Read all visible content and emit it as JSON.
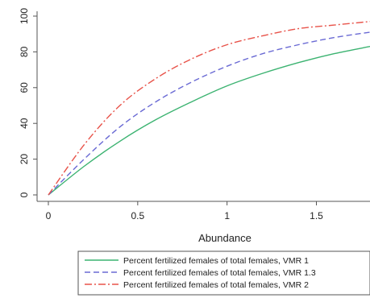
{
  "chart_data": {
    "type": "line",
    "xlabel": "Abundance",
    "ylabel": "",
    "xlim": [
      0,
      1.8
    ],
    "ylim": [
      0,
      100
    ],
    "x_ticks": [
      0,
      0.5,
      1,
      1.5
    ],
    "x_tick_labels": [
      "0",
      "0.5",
      "1",
      "1.5"
    ],
    "y_ticks": [
      0,
      20,
      40,
      60,
      80,
      100
    ],
    "y_tick_labels": [
      "0",
      "20",
      "40",
      "60",
      "80",
      "100"
    ],
    "grid": false,
    "legend_position": "bottom",
    "x": [
      0,
      0.2,
      0.4,
      0.6,
      0.8,
      1.0,
      1.2,
      1.4,
      1.6,
      1.8
    ],
    "series": [
      {
        "name": "Percent fertilized females of total females, VMR 1",
        "color": "#3cb371",
        "dash": "solid",
        "values": [
          0,
          16,
          30,
          42,
          52,
          61,
          68,
          74,
          79,
          83
        ]
      },
      {
        "name": "Percent fertilized females of total females, VMR 1.3",
        "color": "#6a6ad4",
        "dash": "dashed",
        "values": [
          0,
          20,
          38,
          52,
          63,
          72,
          79,
          84,
          88,
          91
        ]
      },
      {
        "name": "Percent fertilized females of total females, VMR 2",
        "color": "#e8534a",
        "dash": "dashdot",
        "values": [
          0,
          28,
          50,
          65,
          76,
          84,
          89,
          93,
          95,
          97
        ]
      }
    ]
  }
}
